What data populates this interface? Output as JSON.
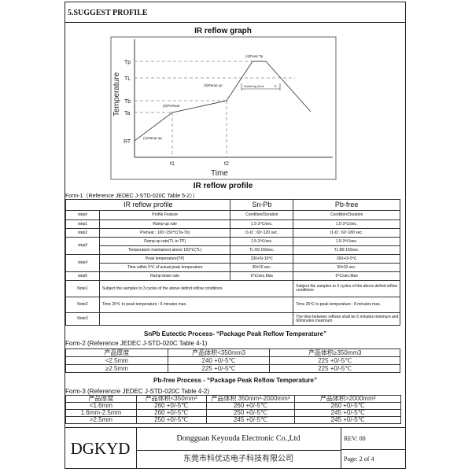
{
  "section_title": "5.SUGGEST PROFILE",
  "graph": {
    "title": "IR reflow graph",
    "y_axis_label": "Temperature",
    "x_axis_label": "Time",
    "y_levels": [
      "Tp",
      "TL",
      "Tb",
      "Ta",
      "RT"
    ],
    "x_marks": [
      "t1",
      "t2"
    ],
    "stages": [
      "(1)Ramp up",
      "(2)Preheat",
      "(3)Ramp up",
      "(4)Peak Tp"
    ],
    "soldering_zone": "Soldering Zone",
    "tl_label": "TL",
    "caption": "IR reflow profile"
  },
  "form1": {
    "caption": "Form-1（Reference  JEDEC J-STD-020C Table 5-2））",
    "headers": [
      "IR reflow profile",
      "Sn-Pb",
      "Pb-free"
    ],
    "subheaders": [
      "step#",
      "Profile Feature",
      "Condition/Duration",
      "Condition/Duration"
    ],
    "rows": [
      [
        "step1",
        "Ramp-up rate",
        "1.5-3℃/sec.",
        "1.5-3℃/sec."
      ],
      [
        "step2",
        "Preheat : 100~150℃(Ta-Tb)",
        "t1-t2 : 60~120 sec.",
        "t1-t2 : 60~180 sec."
      ],
      [
        "step3",
        "Ramp-up rate(TL to TP)",
        "1.5-3℃/sec.",
        "1.5-3℃/sec."
      ],
      [
        "",
        "Temperature maintained above 183℃(TL)",
        "TL:60-150sec.",
        "TL:80-150sec."
      ],
      [
        "step4",
        "Peak temperature(TP)",
        "230+5/-10℃",
        "260+0/-5℃"
      ],
      [
        "",
        "Time within 5℃ of actual peak temperature",
        "30±10 sec.",
        "30±10 sec."
      ],
      [
        "step5",
        "Ramp-down rate",
        "6℃/sec.Max",
        "6℃/sec.Max"
      ]
    ],
    "notes": [
      [
        "Note1",
        "Subject the samples to 3 cycles of the above defind reflow conditions",
        "Subject the samples to 3 cycles of the above defind reflow conditions"
      ],
      [
        "Note2",
        "Time 25℃ to peak temperature : 6 minutes max.",
        "Time 25℃ to peak temperature : 8 minutes max."
      ],
      [
        "Note3",
        "",
        "The time between reflows shall be 5 minutes minimum and 60minutes maximum"
      ]
    ]
  },
  "form2": {
    "title": "SnPb Eutectic Process- “Package Peak Reflow Temperature”",
    "caption": "Form-2  (Reference JEDEC J-STD-020C Table 4-1)",
    "headers": [
      "产品厚度",
      "产品体积<350mm3",
      "产品体积≥350mm3"
    ],
    "rows": [
      [
        "<2.5mm",
        "240 +0/-5℃",
        "225 +0/-5℃"
      ],
      [
        "≥2.5mm",
        "225 +0/-5℃",
        "225 +0/-5℃"
      ]
    ]
  },
  "form3": {
    "title": "Pb-free Process - “Package Peak Reflow Temperature”",
    "caption": "Form-3  (Referencre JEDEC J-STD-020C Table 4-2)",
    "headers": [
      "产品厚度",
      "产品体积<350mm³",
      "产品体积  350mm³-2000mm³",
      "产品体积>2000mm³"
    ],
    "rows": [
      [
        "<1.6mm",
        "260 +0/-5℃",
        "260 +0/-5℃",
        "260 +0/-5℃"
      ],
      [
        "1.6mm-2.5mm",
        "260 +0/-5℃",
        "250 +0/-5℃",
        "245 +0/-5℃"
      ],
      [
        ">2.5mm",
        "250 +0/-5℃",
        "245 +0/-5℃",
        "245 +0/-5℃"
      ]
    ]
  },
  "footer": {
    "logo": "DGKYD",
    "company_en": "Dongguan Keyouda Electronic Co.,Ltd",
    "company_cn": "东莞市科优达电子科技有限公司",
    "rev": "REV:   00",
    "page": "Page:  2 of 4"
  }
}
